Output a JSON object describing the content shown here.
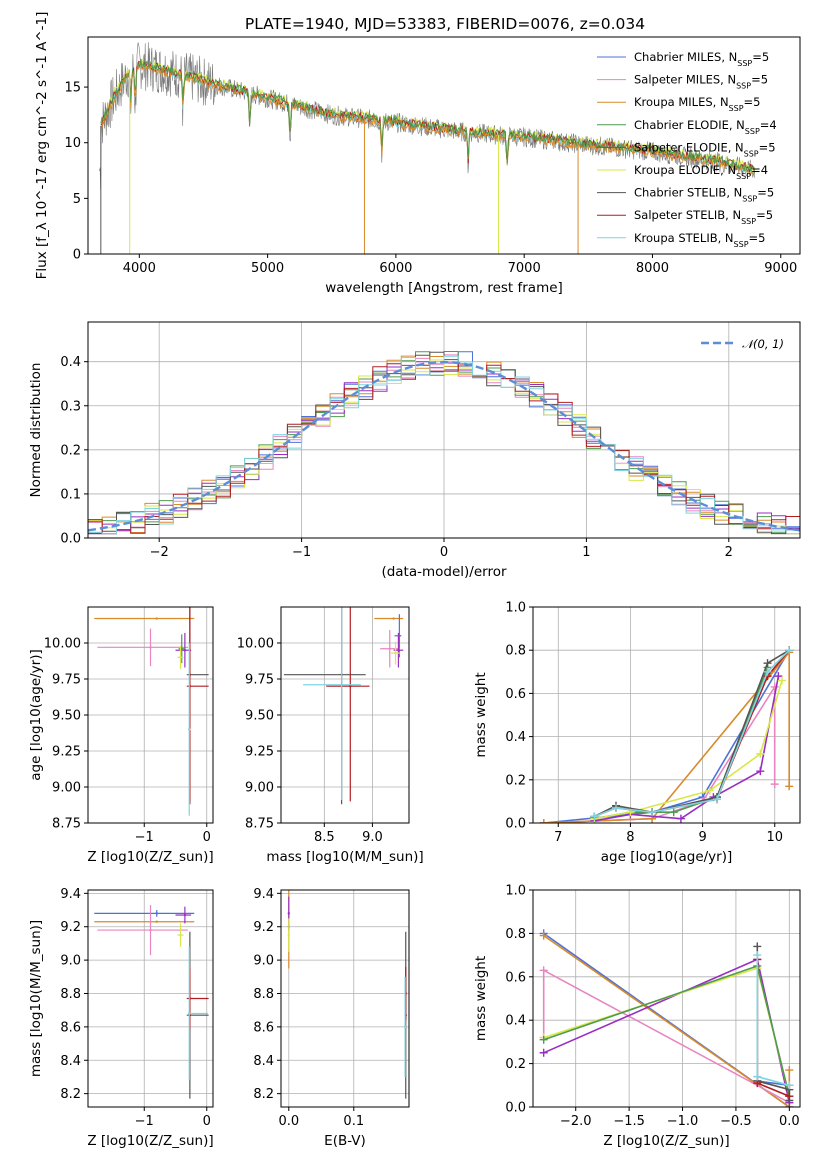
{
  "title": "PLATE=1940, MJD=53383, FIBERID=0076, z=0.034",
  "colors": {
    "Chabrier MILES": "#4c72d8",
    "Salpeter MILES": "#e985c1",
    "Kroupa MILES": "#d98a2b",
    "Chabrier ELODIE": "#4e9a4e",
    "Salpeter ELODIE": "#9a2ec2",
    "Kroupa ELODIE": "#d8e84a",
    "Chabrier STELIB": "#555555",
    "Salpeter STELIB": "#b01e22",
    "Kroupa STELIB": "#7fd4e0",
    "gauss": "#5b8ed6"
  },
  "legend": [
    "Chabrier MILES, N_SSP=5",
    "Salpeter MILES, N_SSP=5",
    "Kroupa MILES, N_SSP=5",
    "Chabrier ELODIE, N_SSP=4",
    "Salpeter ELODIE, N_SSP=5",
    "Kroupa ELODIE, N_SSP=4",
    "Chabrier STELIB, N_SSP=5",
    "Salpeter STELIB, N_SSP=5",
    "Kroupa STELIB, N_SSP=5"
  ],
  "chart_data": [
    {
      "id": "spectrum",
      "type": "line",
      "xlabel": "wavelength [Angstrom, rest frame]",
      "ylabel": "Flux [f_λ 10^-17 erg cm^-2 s^-1 A^-1]",
      "xlim": [
        3600,
        9150
      ],
      "ylim": [
        0,
        19.5
      ],
      "xticks": [
        4000,
        5000,
        6000,
        7000,
        8000,
        9000
      ],
      "yticks": [
        0,
        5,
        10,
        15
      ],
      "grid": false,
      "legend_position": "top-right",
      "continuum": [
        [
          3700,
          11.5
        ],
        [
          3800,
          14
        ],
        [
          3900,
          16
        ],
        [
          4000,
          17
        ],
        [
          4200,
          16.5
        ],
        [
          4500,
          15.5
        ],
        [
          5000,
          14
        ],
        [
          5500,
          12.5
        ],
        [
          6000,
          11.8
        ],
        [
          6500,
          11
        ],
        [
          7000,
          10.5
        ],
        [
          7500,
          9.8
        ],
        [
          8000,
          9.2
        ],
        [
          8500,
          8.3
        ],
        [
          8800,
          7.5
        ]
      ],
      "absorption_lines": [
        3933,
        3968,
        4340,
        4861,
        5175,
        5890,
        6563,
        6867
      ]
    },
    {
      "id": "residuals",
      "type": "histogram",
      "xlabel": "(data-model)/error",
      "ylabel": "Normed distribution",
      "xlim": [
        -2.5,
        2.5
      ],
      "ylim": [
        0,
        0.49
      ],
      "xticks": [
        -2,
        -1,
        0,
        1,
        2
      ],
      "yticks": [
        0,
        0.1,
        0.2,
        0.3,
        0.4
      ],
      "grid": true,
      "bin_width": 0.1,
      "reference_curve": "N(0,1)",
      "legend_position": "top-right"
    },
    {
      "id": "age_vs_Z",
      "type": "scatter",
      "xlabel": "Z [log10(Z/Z_sun)]",
      "ylabel": "age [log10(age/yr)]",
      "xlim": [
        -1.9,
        0.1
      ],
      "ylim": [
        8.75,
        10.25
      ],
      "xticks": [
        -1,
        0
      ],
      "yticks": [
        8.75,
        9.0,
        9.25,
        9.5,
        9.75,
        10.0
      ],
      "grid": true,
      "points": [
        {
          "series": "Salpeter MILES",
          "x": -0.9,
          "xerr_low": 0.85,
          "xerr_high": 0.6,
          "y": 9.97,
          "yerr": 0.13
        },
        {
          "series": "Kroupa MILES",
          "x": -0.8,
          "xerr_low": 1.0,
          "xerr_high": 0.6,
          "y": 10.17,
          "yerr": 0.0
        },
        {
          "series": "Salpeter ELODIE",
          "x": -0.35,
          "xerr_low": 0.15,
          "xerr_high": 0.1,
          "y": 9.95,
          "yerr": 0.12
        },
        {
          "series": "Chabrier ELODIE",
          "x": -0.4,
          "xerr_low": 0.05,
          "xerr_high": 0.05,
          "y": 9.96,
          "yerr": 0.1
        },
        {
          "series": "Kroupa ELODIE",
          "x": -0.42,
          "xerr_low": 0.05,
          "xerr_high": 0.05,
          "y": 9.9,
          "yerr": 0.08
        },
        {
          "series": "Chabrier STELIB",
          "x": -0.27,
          "xerr_low": 0.05,
          "xerr_high": 0.3,
          "y": 9.78,
          "yerr": 0.9
        },
        {
          "series": "Salpeter STELIB",
          "x": -0.27,
          "xerr_low": 0.05,
          "xerr_high": 0.3,
          "y": 9.7,
          "yerr": 0.8
        },
        {
          "series": "Kroupa STELIB",
          "x": -0.28,
          "xerr_low": 0.02,
          "xerr_high": 0.02,
          "y": 9.4,
          "yerr": 0.6
        }
      ]
    },
    {
      "id": "age_vs_mass",
      "type": "scatter",
      "xlabel": "mass [log10(M/M_sun)]",
      "ylabel": "",
      "xlim": [
        8.05,
        9.38
      ],
      "ylim": [
        8.75,
        10.25
      ],
      "xticks": [
        8.5,
        9.0
      ],
      "yticks": [
        8.75,
        9.0,
        9.25,
        9.5,
        9.75,
        10.0
      ],
      "grid": true,
      "points": [
        {
          "series": "Chabrier STELIB",
          "x": 8.68,
          "xerr_low": 0.6,
          "xerr_high": 0.25,
          "y": 9.78,
          "yerr": 0.9
        },
        {
          "series": "Salpeter STELIB",
          "x": 8.77,
          "xerr_low": 0.25,
          "xerr_high": 0.2,
          "y": 9.7,
          "yerr": 0.8
        },
        {
          "series": "Kroupa STELIB",
          "x": 8.68,
          "xerr_low": 0.4,
          "xerr_high": 0.2,
          "y": 9.71,
          "yerr": 0.8
        },
        {
          "series": "Kroupa MILES",
          "x": 9.22,
          "xerr_low": 0.2,
          "xerr_high": 0.1,
          "y": 10.17,
          "yerr": 0.0
        },
        {
          "series": "Chabrier MILES",
          "x": 9.28,
          "xerr_low": 0.05,
          "xerr_high": 0.02,
          "y": 10.05,
          "yerr": 0.15
        },
        {
          "series": "Salpeter MILES",
          "x": 9.18,
          "xerr_low": 0.1,
          "xerr_high": 0.1,
          "y": 9.96,
          "yerr": 0.13
        },
        {
          "series": "Salpeter ELODIE",
          "x": 9.27,
          "xerr_low": 0.05,
          "xerr_high": 0.05,
          "y": 9.95,
          "yerr": 0.12
        },
        {
          "series": "Kroupa ELODIE",
          "x": 9.24,
          "xerr_low": 0.05,
          "xerr_high": 0.05,
          "y": 9.93,
          "yerr": 0.08
        }
      ]
    },
    {
      "id": "massweight_vs_age",
      "type": "line",
      "xlabel": "age [log10(age/yr)]",
      "ylabel": "mass weight",
      "xlim": [
        6.65,
        10.35
      ],
      "ylim": [
        0,
        1.0
      ],
      "xticks": [
        7,
        8,
        9,
        10
      ],
      "yticks": [
        0,
        0.2,
        0.4,
        0.6,
        0.8,
        1.0
      ],
      "grid": true,
      "series": [
        {
          "name": "Chabrier MILES",
          "x": [
            6.8,
            8.3,
            9.0,
            10.2
          ],
          "y": [
            0.0,
            0.05,
            0.12,
            0.8
          ]
        },
        {
          "name": "Salpeter MILES",
          "x": [
            6.8,
            8.3,
            9.0,
            10.0,
            10.0
          ],
          "y": [
            0.0,
            0.02,
            0.1,
            0.63,
            0.18
          ]
        },
        {
          "name": "Kroupa MILES",
          "x": [
            6.8,
            8.3,
            10.2,
            10.2
          ],
          "y": [
            0.0,
            0.02,
            0.79,
            0.17
          ]
        },
        {
          "name": "Chabrier ELODIE",
          "x": [
            7.5,
            8.0,
            8.6,
            9.2,
            9.9
          ],
          "y": [
            0.02,
            0.05,
            0.05,
            0.12,
            0.72
          ]
        },
        {
          "name": "Salpeter ELODIE",
          "x": [
            7.5,
            8.0,
            8.7,
            9.15,
            9.8,
            10.05
          ],
          "y": [
            0.01,
            0.04,
            0.02,
            0.12,
            0.24,
            0.68
          ]
        },
        {
          "name": "Kroupa ELODIE",
          "x": [
            7.5,
            8.0,
            9.1,
            9.8,
            10.1
          ],
          "y": [
            0.02,
            0.05,
            0.15,
            0.32,
            0.66
          ]
        },
        {
          "name": "Chabrier STELIB",
          "x": [
            7.5,
            7.8,
            8.3,
            9.2,
            9.9,
            10.2
          ],
          "y": [
            0.03,
            0.08,
            0.05,
            0.12,
            0.74,
            0.8
          ]
        },
        {
          "name": "Salpeter STELIB",
          "x": [
            7.5,
            7.8,
            8.3,
            9.2,
            9.9,
            10.2
          ],
          "y": [
            0.03,
            0.07,
            0.05,
            0.11,
            0.68,
            0.8
          ]
        },
        {
          "name": "Kroupa STELIB",
          "x": [
            7.5,
            7.8,
            8.3,
            9.2,
            9.9,
            10.2
          ],
          "y": [
            0.03,
            0.07,
            0.05,
            0.11,
            0.7,
            0.8
          ]
        }
      ]
    },
    {
      "id": "mass_vs_Z",
      "type": "scatter",
      "xlabel": "Z [log10(Z/Z_sun)]",
      "ylabel": "mass [log10(M/M_sun)]",
      "xlim": [
        -1.9,
        0.1
      ],
      "ylim": [
        8.12,
        9.42
      ],
      "xticks": [
        -1,
        0
      ],
      "yticks": [
        8.2,
        8.4,
        8.6,
        8.8,
        9.0,
        9.2,
        9.4
      ],
      "grid": true,
      "points": [
        {
          "series": "Chabrier MILES",
          "x": -0.8,
          "xerr_low": 1.0,
          "xerr_high": 0.6,
          "y": 9.28,
          "yerr": 0.02
        },
        {
          "series": "Kroupa MILES",
          "x": -0.8,
          "xerr_low": 1.0,
          "xerr_high": 0.6,
          "y": 9.23,
          "yerr": 0.0
        },
        {
          "series": "Salpeter MILES",
          "x": -0.9,
          "xerr_low": 0.85,
          "xerr_high": 0.6,
          "y": 9.18,
          "yerr": 0.15
        },
        {
          "series": "Salpeter ELODIE",
          "x": -0.35,
          "xerr_low": 0.15,
          "xerr_high": 0.1,
          "y": 9.27,
          "yerr": 0.05
        },
        {
          "series": "Kroupa ELODIE",
          "x": -0.42,
          "xerr_low": 0.05,
          "xerr_high": 0.05,
          "y": 9.15,
          "yerr": 0.07
        },
        {
          "series": "Chabrier STELIB",
          "x": -0.27,
          "xerr_low": 0.05,
          "xerr_high": 0.3,
          "y": 8.67,
          "yerr": 0.5
        },
        {
          "series": "Salpeter STELIB",
          "x": -0.27,
          "xerr_low": 0.05,
          "xerr_high": 0.3,
          "y": 8.77,
          "yerr": 0.18
        },
        {
          "series": "Kroupa STELIB",
          "x": -0.28,
          "xerr_low": 0.02,
          "xerr_high": 0.3,
          "y": 8.68,
          "yerr": 0.4
        }
      ]
    },
    {
      "id": "mass_vs_ebv",
      "type": "scatter",
      "xlabel": "E(B-V)",
      "ylabel": "",
      "xlim": [
        -0.012,
        0.185
      ],
      "ylim": [
        8.12,
        9.42
      ],
      "xticks": [
        0.0,
        0.1
      ],
      "yticks": [
        8.2,
        8.4,
        8.6,
        8.8,
        9.0,
        9.2,
        9.4
      ],
      "grid": true,
      "points": [
        {
          "series": "Kroupa MILES",
          "x": 0.0,
          "y": 9.2,
          "yerr": 0.25
        },
        {
          "series": "Salpeter ELODIE",
          "x": 0.0,
          "y": 9.28,
          "yerr": 0.1
        },
        {
          "series": "Kroupa ELODIE",
          "x": 0.0,
          "y": 9.15,
          "yerr": 0.1
        },
        {
          "series": "Chabrier STELIB",
          "x": 0.18,
          "y": 8.67,
          "yerr": 0.5
        },
        {
          "series": "Salpeter STELIB",
          "x": 0.18,
          "y": 8.8,
          "yerr": 0.16
        },
        {
          "series": "Kroupa STELIB",
          "x": 0.179,
          "y": 8.6,
          "yerr": 0.3
        }
      ]
    },
    {
      "id": "massweight_vs_Z",
      "type": "line",
      "xlabel": "Z [log10(Z/Z_sun)]",
      "ylabel": "mass weight",
      "xlim": [
        -2.4,
        0.1
      ],
      "ylim": [
        0,
        1.0
      ],
      "xticks": [
        -2.0,
        -1.5,
        -1.0,
        -0.5,
        0.0
      ],
      "yticks": [
        0,
        0.2,
        0.4,
        0.6,
        0.8,
        1.0
      ],
      "grid": true,
      "series": [
        {
          "name": "Chabrier MILES",
          "x": [
            -2.3,
            0.0,
            0.0,
            -0.3
          ],
          "y": [
            0.8,
            0.0,
            0.1,
            0.12
          ]
        },
        {
          "name": "Kroupa MILES",
          "x": [
            -2.3,
            0.0,
            0.0
          ],
          "y": [
            0.79,
            0.0,
            0.17
          ]
        },
        {
          "name": "Salpeter MILES",
          "x": [
            -2.3,
            -2.3,
            0.0
          ],
          "y": [
            0.32,
            0.63,
            0.02
          ]
        },
        {
          "name": "Salpeter ELODIE",
          "x": [
            -2.3,
            -0.3,
            0.0
          ],
          "y": [
            0.25,
            0.68,
            0.02
          ]
        },
        {
          "name": "Kroupa ELODIE",
          "x": [
            -2.3,
            -0.3,
            0.0
          ],
          "y": [
            0.32,
            0.64,
            0.05
          ]
        },
        {
          "name": "Chabrier ELODIE",
          "x": [
            -2.3,
            -0.3,
            0.0
          ],
          "y": [
            0.31,
            0.65,
            0.05
          ]
        },
        {
          "name": "Chabrier STELIB",
          "x": [
            -0.3,
            -0.3,
            0.0,
            0.0
          ],
          "y": [
            0.74,
            0.12,
            0.08,
            0.03
          ]
        },
        {
          "name": "Salpeter STELIB",
          "x": [
            -0.3,
            -0.3,
            0.0
          ],
          "y": [
            0.68,
            0.11,
            0.05
          ]
        },
        {
          "name": "Kroupa STELIB",
          "x": [
            -0.3,
            -0.3,
            0.0
          ],
          "y": [
            0.7,
            0.14,
            0.1
          ]
        }
      ]
    }
  ]
}
